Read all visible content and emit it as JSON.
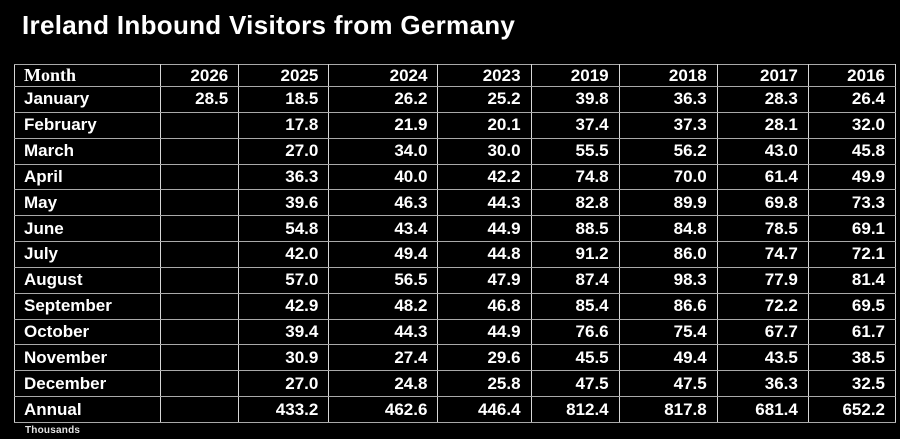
{
  "title": "Ireland Inbound Visitors from Germany",
  "footnote": "Thousands",
  "colors": {
    "background": "#000000",
    "text": "#ffffff",
    "border_vertical": "#d6d6d6",
    "border_horizontal": "#a9a9a9"
  },
  "chart_data": {
    "type": "table",
    "title": "Ireland Inbound Visitors from Germany",
    "unit": "Thousands",
    "columns": [
      "Month",
      "2026",
      "2025",
      "2024",
      "2023",
      "2019",
      "2018",
      "2017",
      "2016"
    ],
    "rows": [
      {
        "label": "January",
        "values": [
          "28.5",
          "18.5",
          "26.2",
          "25.2",
          "39.8",
          "36.3",
          "28.3",
          "26.4"
        ]
      },
      {
        "label": "February",
        "values": [
          "",
          "17.8",
          "21.9",
          "20.1",
          "37.4",
          "37.3",
          "28.1",
          "32.0"
        ]
      },
      {
        "label": "March",
        "values": [
          "",
          "27.0",
          "34.0",
          "30.0",
          "55.5",
          "56.2",
          "43.0",
          "45.8"
        ]
      },
      {
        "label": "April",
        "values": [
          "",
          "36.3",
          "40.0",
          "42.2",
          "74.8",
          "70.0",
          "61.4",
          "49.9"
        ]
      },
      {
        "label": "May",
        "values": [
          "",
          "39.6",
          "46.3",
          "44.3",
          "82.8",
          "89.9",
          "69.8",
          "73.3"
        ]
      },
      {
        "label": "June",
        "values": [
          "",
          "54.8",
          "43.4",
          "44.9",
          "88.5",
          "84.8",
          "78.5",
          "69.1"
        ]
      },
      {
        "label": "July",
        "values": [
          "",
          "42.0",
          "49.4",
          "44.8",
          "91.2",
          "86.0",
          "74.7",
          "72.1"
        ]
      },
      {
        "label": "August",
        "values": [
          "",
          "57.0",
          "56.5",
          "47.9",
          "87.4",
          "98.3",
          "77.9",
          "81.4"
        ]
      },
      {
        "label": "September",
        "values": [
          "",
          "42.9",
          "48.2",
          "46.8",
          "85.4",
          "86.6",
          "72.2",
          "69.5"
        ]
      },
      {
        "label": "October",
        "values": [
          "",
          "39.4",
          "44.3",
          "44.9",
          "76.6",
          "75.4",
          "67.7",
          "61.7"
        ]
      },
      {
        "label": "November",
        "values": [
          "",
          "30.9",
          "27.4",
          "29.6",
          "45.5",
          "49.4",
          "43.5",
          "38.5"
        ]
      },
      {
        "label": "December",
        "values": [
          "",
          "27.0",
          "24.8",
          "25.8",
          "47.5",
          "47.5",
          "36.3",
          "32.5"
        ]
      },
      {
        "label": "Annual",
        "values": [
          "",
          "433.2",
          "462.6",
          "446.4",
          "812.4",
          "817.8",
          "681.4",
          "652.2"
        ]
      }
    ]
  }
}
